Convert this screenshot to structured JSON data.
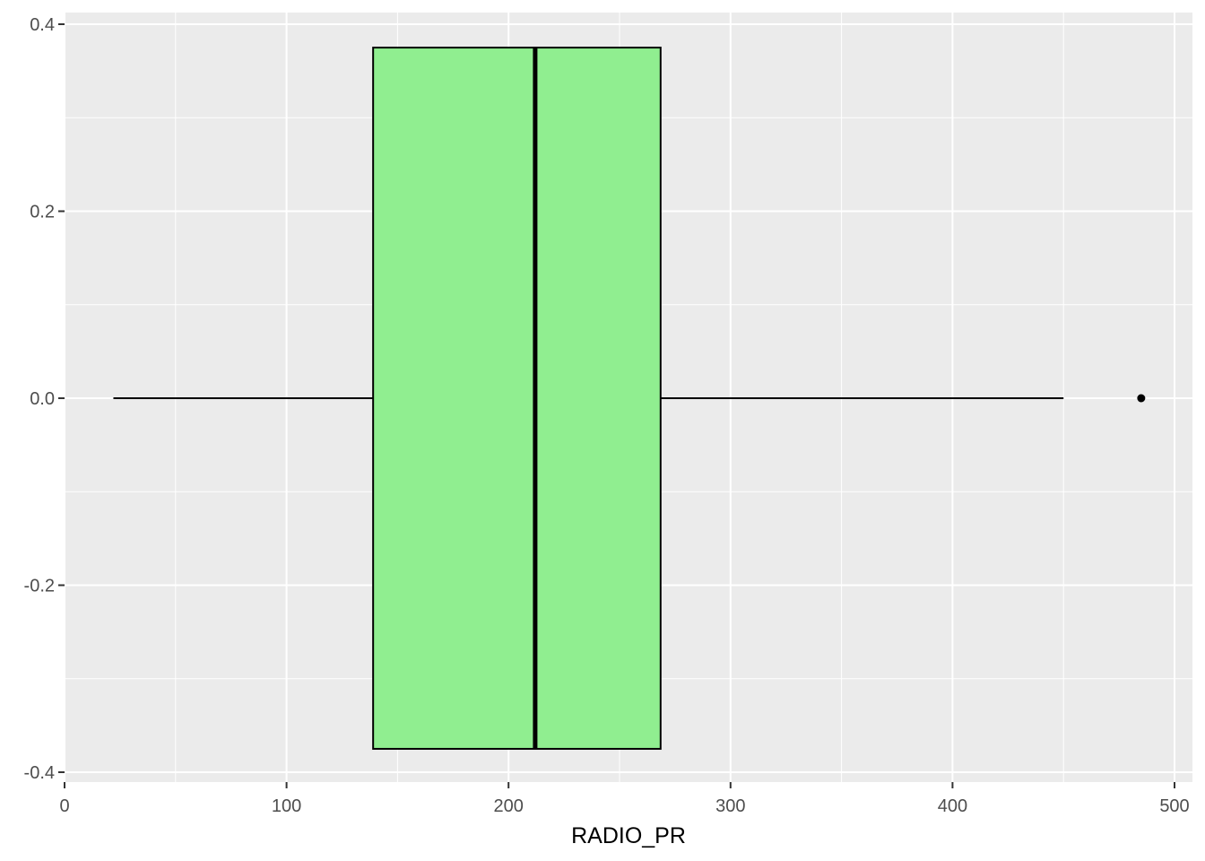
{
  "chart_data": {
    "type": "boxplot",
    "orientation": "horizontal",
    "title": "",
    "xlabel": "RADIO_PR",
    "ylabel": "",
    "xlim": [
      0,
      505
    ],
    "ylim": [
      -0.42,
      0.42
    ],
    "x_ticks": [
      0,
      100,
      200,
      300,
      400,
      500
    ],
    "x_tick_labels": [
      "0",
      "100",
      "200",
      "300",
      "400",
      "500"
    ],
    "y_ticks": [
      -0.4,
      -0.2,
      0.0,
      0.2,
      0.4
    ],
    "y_tick_labels": [
      "-0.4",
      "-0.2",
      "0.0",
      "0.2",
      "0.4"
    ],
    "grid": true,
    "box": {
      "whisker_low": 22,
      "q1": 139,
      "median": 212,
      "q3": 268.5,
      "whisker_high": 450,
      "outliers": [
        485
      ],
      "y_center": 0.0,
      "half_width": 0.375
    },
    "colors": {
      "panel_background": "#ebebeb",
      "grid_major": "#ffffff",
      "box_fill": "#90ee90",
      "box_outline": "#000000",
      "whisker": "#000000",
      "outlier": "#000000"
    }
  }
}
